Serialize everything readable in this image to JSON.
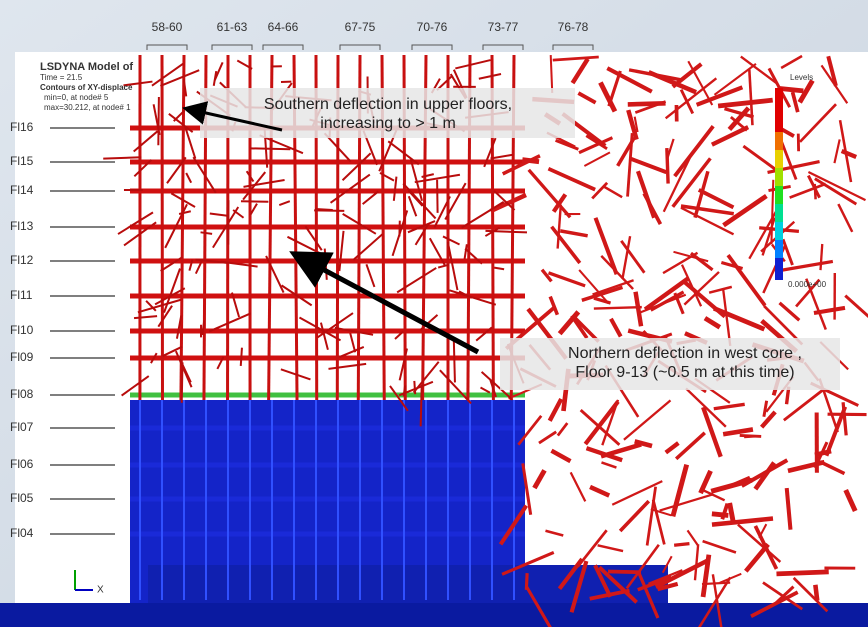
{
  "header": {
    "title": "LSDYNA Model of",
    "time": "Time =     21.5",
    "contours": "Contours of XY-displace",
    "min": "min=0, at node# 5",
    "max": "max=30.212, at node# 1"
  },
  "columns": [
    "58-60",
    "61-63",
    "64-66",
    "67-75",
    "70-76",
    "73-77",
    "76-78"
  ],
  "floors": [
    "Fl16",
    "Fl15",
    "Fl14",
    "Fl13",
    "Fl12",
    "Fl11",
    "Fl10",
    "Fl09",
    "Fl08",
    "Fl07",
    "Fl06",
    "Fl05",
    "Fl04"
  ],
  "annotations": [
    {
      "lines": [
        "Southern deflection in upper floors,",
        "increasing to > 1 m"
      ]
    },
    {
      "lines": [
        "Northern deflection in west core ,",
        "Floor 9-13 (~0.5 m at this time)"
      ]
    }
  ],
  "legend": {
    "title": "Levels",
    "bottom": "0.000e+00"
  },
  "axis": {
    "x": "X"
  }
}
